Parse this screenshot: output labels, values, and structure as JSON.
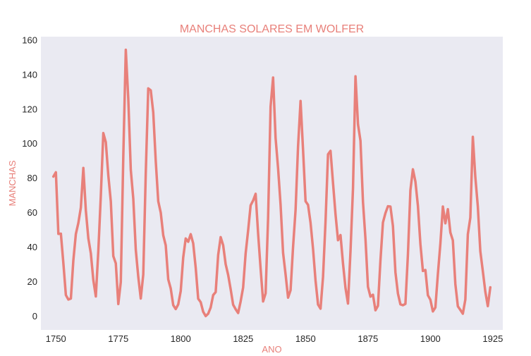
{
  "chart_data": {
    "type": "line",
    "title": "MANCHAS SOLARES EM WOLFER",
    "xlabel": "ANO",
    "ylabel": "MANCHAS",
    "xlim": [
      1749,
      1924
    ],
    "ylim": [
      -8,
      162
    ],
    "xticks": [
      1750,
      1775,
      1800,
      1825,
      1850,
      1875,
      1900,
      1925
    ],
    "yticks": [
      0,
      20,
      40,
      60,
      80,
      100,
      120,
      140,
      160
    ],
    "grid": false,
    "legend": "none",
    "colors": {
      "line": "#e8807a",
      "plot_bg": "#eaeaf2",
      "tick_text": "#262626",
      "label_text": "#e8807a"
    },
    "series": [
      {
        "x": [
          1749,
          1750,
          1751,
          1752,
          1753,
          1754,
          1755,
          1756,
          1757,
          1758,
          1759,
          1760,
          1761,
          1762,
          1763,
          1764,
          1765,
          1766,
          1767,
          1768,
          1769,
          1770,
          1771,
          1772,
          1773,
          1774,
          1775,
          1776,
          1777,
          1778,
          1779,
          1780,
          1781,
          1782,
          1783,
          1784,
          1785,
          1786,
          1787,
          1788,
          1789,
          1790,
          1791,
          1792,
          1793,
          1794,
          1795,
          1796,
          1797,
          1798,
          1799,
          1800,
          1801,
          1802,
          1803,
          1804,
          1805,
          1806,
          1807,
          1808,
          1809,
          1810,
          1811,
          1812,
          1813,
          1814,
          1815,
          1816,
          1817,
          1818,
          1819,
          1820,
          1821,
          1822,
          1823,
          1824,
          1825,
          1826,
          1827,
          1828,
          1829,
          1830,
          1831,
          1832,
          1833,
          1834,
          1835,
          1836,
          1837,
          1838,
          1839,
          1840,
          1841,
          1842,
          1843,
          1844,
          1845,
          1846,
          1847,
          1848,
          1849,
          1850,
          1851,
          1852,
          1853,
          1854,
          1855,
          1856,
          1857,
          1858,
          1859,
          1860,
          1861,
          1862,
          1863,
          1864,
          1865,
          1866,
          1867,
          1868,
          1869,
          1870,
          1871,
          1872,
          1873,
          1874,
          1875,
          1876,
          1877,
          1878,
          1879,
          1880,
          1881,
          1882,
          1883,
          1884,
          1885,
          1886,
          1887,
          1888,
          1889,
          1890,
          1891,
          1892,
          1893,
          1894,
          1895,
          1896,
          1897,
          1898,
          1899,
          1900,
          1901,
          1902,
          1903,
          1904,
          1905,
          1906,
          1907,
          1908,
          1909,
          1910,
          1911,
          1912,
          1913,
          1914,
          1915,
          1916,
          1917,
          1918,
          1919,
          1920,
          1921,
          1922,
          1923,
          1924
        ],
        "values": [
          80.9,
          83.4,
          47.7,
          47.8,
          30.7,
          12.2,
          9.6,
          10.2,
          32.4,
          47.6,
          54.0,
          62.9,
          85.9,
          61.2,
          45.1,
          36.4,
          20.9,
          11.4,
          37.8,
          69.8,
          106.1,
          100.8,
          81.6,
          66.5,
          34.8,
          30.6,
          7.0,
          19.8,
          92.5,
          154.4,
          125.9,
          84.8,
          68.1,
          38.5,
          22.8,
          10.2,
          24.1,
          82.9,
          132.0,
          130.9,
          118.1,
          89.9,
          66.6,
          60.0,
          46.9,
          41.0,
          21.3,
          16.0,
          6.4,
          4.1,
          6.8,
          14.5,
          34.0,
          45.0,
          43.1,
          47.5,
          42.2,
          28.1,
          10.1,
          8.1,
          2.5,
          0.0,
          1.4,
          5.0,
          12.2,
          13.9,
          35.4,
          45.8,
          41.1,
          30.1,
          23.9,
          15.6,
          6.6,
          4.0,
          1.8,
          8.5,
          16.6,
          36.3,
          49.6,
          64.2,
          67.0,
          70.9,
          47.8,
          27.5,
          8.5,
          13.2,
          56.9,
          121.5,
          138.3,
          103.2,
          85.7,
          64.6,
          36.7,
          24.2,
          10.7,
          15.0,
          40.1,
          61.5,
          98.5,
          124.7,
          96.3,
          66.6,
          64.5,
          54.1,
          39.0,
          20.6,
          6.7,
          4.3,
          22.7,
          54.8,
          93.8,
          95.8,
          77.2,
          59.1,
          44.0,
          47.0,
          30.5,
          16.3,
          7.3,
          37.6,
          74.0,
          139.0,
          111.2,
          101.6,
          66.2,
          44.7,
          17.0,
          11.3,
          12.4,
          3.4,
          6.0,
          32.3,
          54.3,
          59.7,
          63.7,
          63.5,
          52.2,
          25.4,
          13.1,
          6.8,
          6.3,
          7.1,
          35.6,
          73.0,
          85.1,
          78.0,
          64.0,
          41.8,
          26.2,
          26.7,
          12.1,
          9.5,
          2.7,
          5.0,
          24.4,
          42.0,
          63.5,
          53.8,
          62.0,
          48.5,
          43.9,
          18.6,
          5.7,
          3.6,
          1.4,
          9.6,
          47.4,
          57.1,
          103.9,
          80.6,
          63.6,
          37.6,
          26.1,
          14.2,
          5.8,
          16.7
        ]
      }
    ]
  }
}
